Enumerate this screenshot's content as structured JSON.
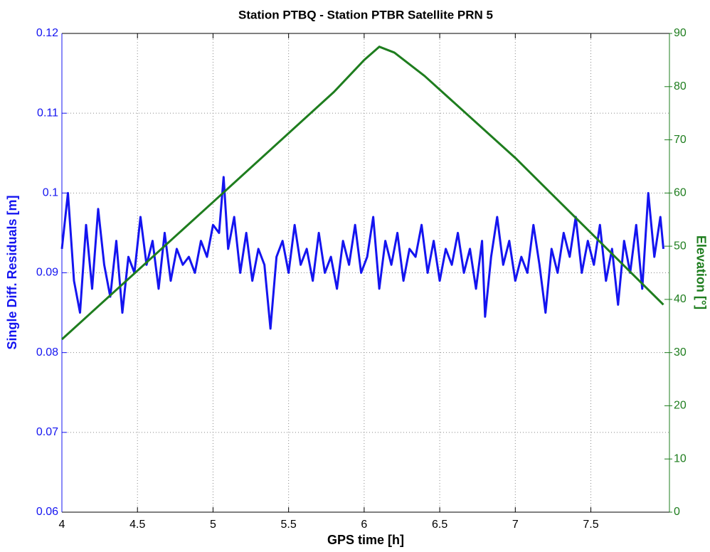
{
  "chart_data": {
    "type": "line",
    "title": "Station PTBQ - Station PTBR Satellite PRN 5",
    "xlabel": "GPS time [h]",
    "ylabel": "Single Diff. Residuals [m]",
    "y2label": "Elevation [°]",
    "xlim": [
      4,
      8.02
    ],
    "xticks": [
      4,
      4.5,
      5,
      5.5,
      6,
      6.5,
      7,
      7.5
    ],
    "ylim": [
      0.06,
      0.12
    ],
    "yticks": [
      0.06,
      0.07,
      0.08,
      0.09,
      0.1,
      0.11,
      0.12
    ],
    "y2lim": [
      0,
      90
    ],
    "y2ticks": [
      0,
      10,
      20,
      30,
      40,
      50,
      60,
      70,
      80,
      90
    ],
    "grid": true,
    "series": [
      {
        "color": "#1414f0",
        "x": [
          4.0,
          4.04,
          4.08,
          4.12,
          4.16,
          4.2,
          4.24,
          4.28,
          4.32,
          4.36,
          4.4,
          4.44,
          4.48,
          4.52,
          4.56,
          4.6,
          4.64,
          4.68,
          4.72,
          4.76,
          4.8,
          4.84,
          4.88,
          4.92,
          4.96,
          5.0,
          5.04,
          5.07,
          5.1,
          5.14,
          5.18,
          5.22,
          5.26,
          5.3,
          5.34,
          5.38,
          5.42,
          5.46,
          5.5,
          5.54,
          5.58,
          5.62,
          5.66,
          5.7,
          5.74,
          5.78,
          5.82,
          5.86,
          5.9,
          5.94,
          5.98,
          6.02,
          6.06,
          6.1,
          6.14,
          6.18,
          6.22,
          6.26,
          6.3,
          6.34,
          6.38,
          6.42,
          6.46,
          6.5,
          6.54,
          6.58,
          6.62,
          6.66,
          6.7,
          6.74,
          6.78,
          6.8,
          6.84,
          6.88,
          6.92,
          6.96,
          7.0,
          7.04,
          7.08,
          7.12,
          7.16,
          7.2,
          7.24,
          7.28,
          7.32,
          7.36,
          7.4,
          7.44,
          7.48,
          7.52,
          7.56,
          7.6,
          7.64,
          7.68,
          7.72,
          7.76,
          7.8,
          7.84,
          7.88,
          7.92,
          7.96,
          7.98
        ],
        "values": [
          0.093,
          0.1,
          0.089,
          0.085,
          0.096,
          0.088,
          0.098,
          0.091,
          0.087,
          0.094,
          0.085,
          0.092,
          0.09,
          0.097,
          0.091,
          0.094,
          0.088,
          0.095,
          0.089,
          0.093,
          0.091,
          0.092,
          0.09,
          0.094,
          0.092,
          0.096,
          0.095,
          0.102,
          0.093,
          0.097,
          0.09,
          0.095,
          0.089,
          0.093,
          0.091,
          0.083,
          0.092,
          0.094,
          0.09,
          0.096,
          0.091,
          0.093,
          0.089,
          0.095,
          0.09,
          0.092,
          0.088,
          0.094,
          0.091,
          0.096,
          0.09,
          0.092,
          0.097,
          0.088,
          0.094,
          0.091,
          0.095,
          0.089,
          0.093,
          0.092,
          0.096,
          0.09,
          0.094,
          0.089,
          0.093,
          0.091,
          0.095,
          0.09,
          0.093,
          0.088,
          0.094,
          0.0845,
          0.092,
          0.097,
          0.091,
          0.094,
          0.089,
          0.092,
          0.09,
          0.096,
          0.091,
          0.085,
          0.093,
          0.09,
          0.095,
          0.092,
          0.097,
          0.09,
          0.094,
          0.091,
          0.096,
          0.089,
          0.093,
          0.086,
          0.094,
          0.09,
          0.096,
          0.088,
          0.1,
          0.092,
          0.097,
          0.093
        ]
      },
      {
        "color": "#1e7d1e",
        "axis": "y2",
        "x": [
          4.0,
          5.0,
          5.8,
          6.0,
          6.1,
          6.2,
          6.4,
          7.0,
          7.98
        ],
        "values": [
          32.5,
          58.3,
          79.0,
          85.0,
          87.5,
          86.4,
          82.0,
          66.6,
          39.0
        ]
      }
    ]
  }
}
